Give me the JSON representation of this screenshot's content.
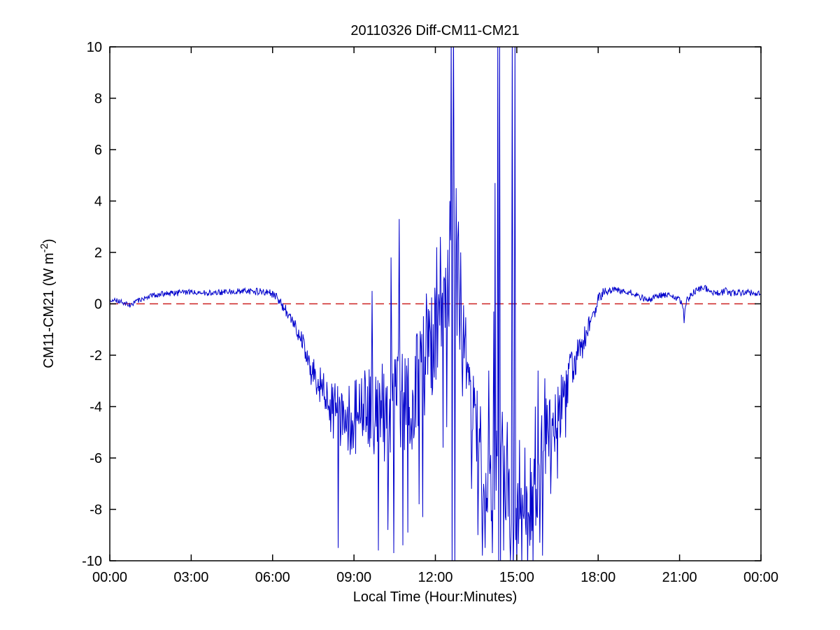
{
  "figure": {
    "background": "#ffffff",
    "text_color": "#000000"
  },
  "chart_data": {
    "type": "line",
    "title": "20110326 Diff-CM11-CM21",
    "xlabel": "Local Time (Hour:Minutes)",
    "ylabel": "CM11-CM21 (W m^-2)",
    "ylabel_parts": {
      "main": "CM11-CM21 (W m",
      "sup": "-2",
      "end": ")"
    },
    "xlim_minutes": [
      0,
      1440
    ],
    "ylim": [
      -10,
      10
    ],
    "grid": false,
    "legend": null,
    "axis_color": "#000000",
    "x_ticks": [
      {
        "minutes": 0,
        "label": "00:00"
      },
      {
        "minutes": 180,
        "label": "03:00"
      },
      {
        "minutes": 360,
        "label": "06:00"
      },
      {
        "minutes": 540,
        "label": "09:00"
      },
      {
        "minutes": 720,
        "label": "12:00"
      },
      {
        "minutes": 900,
        "label": "15:00"
      },
      {
        "minutes": 1080,
        "label": "18:00"
      },
      {
        "minutes": 1260,
        "label": "21:00"
      },
      {
        "minutes": 1440,
        "label": "00:00"
      }
    ],
    "y_ticks": [
      {
        "value": -10,
        "label": "-10"
      },
      {
        "value": -8,
        "label": "-8"
      },
      {
        "value": -6,
        "label": "-6"
      },
      {
        "value": -4,
        "label": "-4"
      },
      {
        "value": -2,
        "label": "-2"
      },
      {
        "value": 0,
        "label": "0"
      },
      {
        "value": 2,
        "label": "2"
      },
      {
        "value": 4,
        "label": "4"
      },
      {
        "value": 6,
        "label": "6"
      },
      {
        "value": 8,
        "label": "8"
      },
      {
        "value": 10,
        "label": "10"
      }
    ],
    "zero_line": {
      "value": 0,
      "color": "#cc2222",
      "style": "dashed",
      "dash": [
        12,
        7
      ]
    },
    "series": [
      {
        "name": "CM11-CM21 difference",
        "color": "#0000cc",
        "line_width": 1,
        "sample_step_minutes": 1.2,
        "noise_seed": 20110326,
        "baseline_points": [
          [
            0,
            0.15
          ],
          [
            25,
            0.1
          ],
          [
            45,
            -0.05
          ],
          [
            60,
            0.1
          ],
          [
            90,
            0.3
          ],
          [
            120,
            0.4
          ],
          [
            150,
            0.42
          ],
          [
            180,
            0.45
          ],
          [
            210,
            0.42
          ],
          [
            240,
            0.45
          ],
          [
            270,
            0.48
          ],
          [
            300,
            0.5
          ],
          [
            330,
            0.48
          ],
          [
            355,
            0.45
          ],
          [
            370,
            0.25
          ],
          [
            380,
            0.0
          ],
          [
            390,
            -0.3
          ],
          [
            405,
            -0.75
          ],
          [
            420,
            -1.25
          ],
          [
            435,
            -2.0
          ],
          [
            450,
            -2.8
          ],
          [
            465,
            -3.3
          ],
          [
            480,
            -3.8
          ],
          [
            500,
            -4.3
          ],
          [
            520,
            -4.6
          ],
          [
            545,
            -4.4
          ],
          [
            565,
            -4.1
          ],
          [
            585,
            -4.2
          ],
          [
            600,
            -4.3
          ],
          [
            615,
            -3.9
          ],
          [
            630,
            -3.5
          ],
          [
            645,
            -3.8
          ],
          [
            660,
            -3.9
          ],
          [
            675,
            -3.3
          ],
          [
            690,
            -2.7
          ],
          [
            705,
            -2.2
          ],
          [
            720,
            -1.5
          ],
          [
            730,
            -0.8
          ],
          [
            740,
            -0.2
          ],
          [
            748,
            0.6
          ],
          [
            754,
            1.2
          ],
          [
            760,
            1.0
          ],
          [
            766,
            0.7
          ],
          [
            772,
            0.3
          ],
          [
            778,
            -0.6
          ],
          [
            788,
            -2.0
          ],
          [
            798,
            -3.2
          ],
          [
            808,
            -4.2
          ],
          [
            818,
            -5.4
          ],
          [
            828,
            -6.2
          ],
          [
            836,
            -6.8
          ],
          [
            844,
            -7.1
          ],
          [
            852,
            -6.3
          ],
          [
            858,
            -5.6
          ],
          [
            866,
            -6.6
          ],
          [
            875,
            -7.4
          ],
          [
            885,
            -7.7
          ],
          [
            895,
            -8.0
          ],
          [
            905,
            -8.2
          ],
          [
            915,
            -8.4
          ],
          [
            925,
            -8.2
          ],
          [
            935,
            -7.7
          ],
          [
            945,
            -6.8
          ],
          [
            955,
            -6.0
          ],
          [
            965,
            -5.1
          ],
          [
            975,
            -4.7
          ],
          [
            985,
            -4.5
          ],
          [
            995,
            -4.1
          ],
          [
            1005,
            -3.5
          ],
          [
            1015,
            -2.9
          ],
          [
            1025,
            -2.4
          ],
          [
            1035,
            -2.0
          ],
          [
            1045,
            -1.6
          ],
          [
            1055,
            -1.1
          ],
          [
            1065,
            -0.6
          ],
          [
            1072,
            -0.25
          ],
          [
            1080,
            0.15
          ],
          [
            1090,
            0.45
          ],
          [
            1105,
            0.5
          ],
          [
            1120,
            0.55
          ],
          [
            1135,
            0.45
          ],
          [
            1150,
            0.45
          ],
          [
            1165,
            0.35
          ],
          [
            1180,
            0.2
          ],
          [
            1195,
            0.15
          ],
          [
            1210,
            0.3
          ],
          [
            1225,
            0.35
          ],
          [
            1240,
            0.3
          ],
          [
            1252,
            0.25
          ],
          [
            1262,
            0.1
          ],
          [
            1270,
            -0.3
          ],
          [
            1276,
            0.15
          ],
          [
            1288,
            0.4
          ],
          [
            1300,
            0.55
          ],
          [
            1312,
            0.65
          ],
          [
            1322,
            0.55
          ],
          [
            1335,
            0.45
          ],
          [
            1350,
            0.42
          ],
          [
            1362,
            0.5
          ],
          [
            1375,
            0.4
          ],
          [
            1388,
            0.45
          ],
          [
            1400,
            0.42
          ],
          [
            1412,
            0.45
          ],
          [
            1425,
            0.4
          ],
          [
            1440,
            0.45
          ]
        ],
        "noise_amplitude_points": [
          [
            0,
            0.1
          ],
          [
            60,
            0.1
          ],
          [
            120,
            0.12
          ],
          [
            300,
            0.12
          ],
          [
            355,
            0.15
          ],
          [
            375,
            0.2
          ],
          [
            400,
            0.25
          ],
          [
            420,
            0.35
          ],
          [
            440,
            0.55
          ],
          [
            460,
            0.8
          ],
          [
            480,
            1.0
          ],
          [
            500,
            1.2
          ],
          [
            530,
            1.5
          ],
          [
            560,
            1.8
          ],
          [
            590,
            2.0
          ],
          [
            620,
            2.1
          ],
          [
            650,
            2.1
          ],
          [
            680,
            2.2
          ],
          [
            710,
            2.2
          ],
          [
            735,
            2.2
          ],
          [
            752,
            2.4
          ],
          [
            765,
            2.2
          ],
          [
            780,
            1.8
          ],
          [
            800,
            1.6
          ],
          [
            820,
            1.6
          ],
          [
            840,
            1.9
          ],
          [
            856,
            2.1
          ],
          [
            870,
            1.7
          ],
          [
            885,
            1.5
          ],
          [
            900,
            1.3
          ],
          [
            915,
            1.2
          ],
          [
            932,
            1.5
          ],
          [
            946,
            1.8
          ],
          [
            960,
            1.6
          ],
          [
            975,
            1.4
          ],
          [
            990,
            1.3
          ],
          [
            1005,
            1.1
          ],
          [
            1020,
            0.9
          ],
          [
            1035,
            0.7
          ],
          [
            1050,
            0.5
          ],
          [
            1062,
            0.4
          ],
          [
            1074,
            0.3
          ],
          [
            1085,
            0.22
          ],
          [
            1095,
            0.16
          ],
          [
            1110,
            0.13
          ],
          [
            1200,
            0.12
          ],
          [
            1300,
            0.13
          ],
          [
            1440,
            0.12
          ]
        ],
        "spikes": [
          [
            505,
            -9.5
          ],
          [
            580,
            0.5
          ],
          [
            594,
            -9.6
          ],
          [
            615,
            -8.8
          ],
          [
            622,
            1.8
          ],
          [
            628,
            -9.7
          ],
          [
            640,
            3.3
          ],
          [
            648,
            -9.4
          ],
          [
            659,
            -8.9
          ],
          [
            684,
            -7.8
          ],
          [
            692,
            -8.3
          ],
          [
            700,
            0.4
          ],
          [
            723,
            2.2
          ],
          [
            731,
            2.6
          ],
          [
            737,
            -5.6
          ],
          [
            745,
            -4.8
          ],
          [
            752,
            4.0
          ],
          [
            755,
            10.6
          ],
          [
            757,
            -10.5
          ],
          [
            760,
            10.8
          ],
          [
            763,
            -10.6
          ],
          [
            766,
            4.5
          ],
          [
            771,
            3.2
          ],
          [
            776,
            2.0
          ],
          [
            780,
            -3.6
          ],
          [
            800,
            -7.2
          ],
          [
            814,
            -9.0
          ],
          [
            824,
            -9.8
          ],
          [
            830,
            -9.5
          ],
          [
            838,
            -2.6
          ],
          [
            846,
            -9.7
          ],
          [
            849,
            -0.3
          ],
          [
            852,
            4.7
          ],
          [
            858,
            10.7
          ],
          [
            860,
            -10.6
          ],
          [
            862,
            10.5
          ],
          [
            864,
            -10.4
          ],
          [
            868,
            -4.2
          ],
          [
            871,
            -9.6
          ],
          [
            879,
            -4.6
          ],
          [
            886,
            -10.0
          ],
          [
            890,
            10.5
          ],
          [
            892,
            -10.5
          ],
          [
            896,
            10.3
          ],
          [
            900,
            -10.3
          ],
          [
            906,
            -5.3
          ],
          [
            911,
            -10.2
          ],
          [
            918,
            -5.6
          ],
          [
            924,
            -10.3
          ],
          [
            930,
            -6.0
          ],
          [
            936,
            -10.2
          ],
          [
            941,
            -4.0
          ],
          [
            947,
            -2.6
          ],
          [
            951,
            -9.3
          ],
          [
            957,
            -9.8
          ],
          [
            962,
            -2.9
          ],
          [
            975,
            -7.4
          ],
          [
            990,
            -6.8
          ],
          [
            1008,
            -5.2
          ],
          [
            1270,
            -0.75
          ]
        ]
      }
    ]
  }
}
